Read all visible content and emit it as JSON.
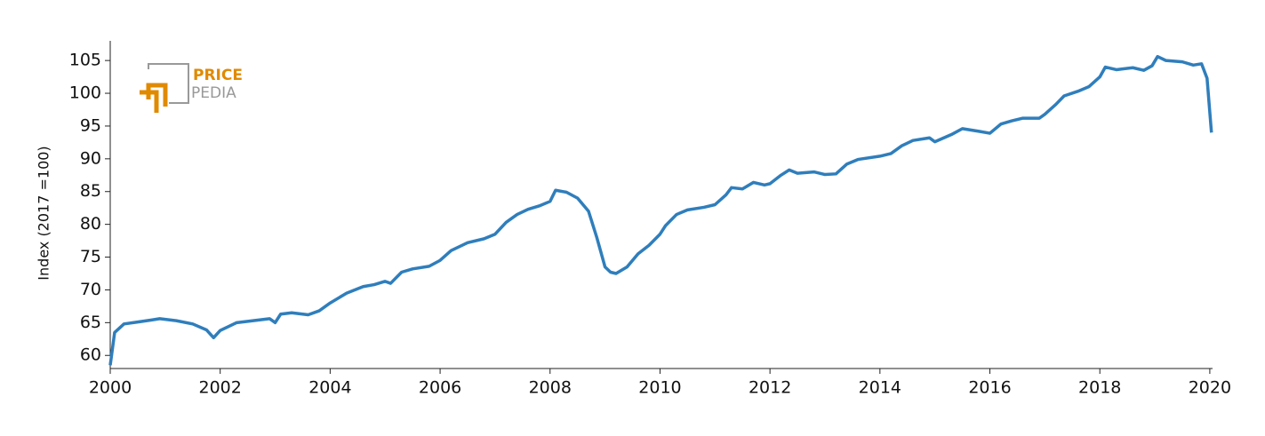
{
  "chart_data": {
    "type": "line",
    "y_label": "Index (2017 =100)",
    "watermark": {
      "line1": "PRICE",
      "line2": "PEDIA"
    },
    "xlim": [
      2000,
      2020.05
    ],
    "xticks": [
      2000,
      2002,
      2004,
      2006,
      2008,
      2010,
      2012,
      2014,
      2016,
      2018,
      2020
    ],
    "ylim": [
      58,
      108
    ],
    "yticks": [
      60,
      65,
      70,
      75,
      80,
      85,
      90,
      95,
      100,
      105
    ],
    "grid": false,
    "series": [
      {
        "name": "Index",
        "color": "#2f7ebc",
        "x": [
          2000.0,
          2000.08,
          2000.25,
          2000.5,
          2000.75,
          2000.9,
          2001.0,
          2001.2,
          2001.5,
          2001.75,
          2001.88,
          2002.0,
          2002.3,
          2002.6,
          2002.9,
          2003.0,
          2003.1,
          2003.3,
          2003.6,
          2003.8,
          2004.0,
          2004.3,
          2004.6,
          2004.8,
          2005.0,
          2005.1,
          2005.3,
          2005.5,
          2005.8,
          2006.0,
          2006.2,
          2006.5,
          2006.8,
          2007.0,
          2007.2,
          2007.4,
          2007.6,
          2007.8,
          2008.0,
          2008.1,
          2008.3,
          2008.5,
          2008.7,
          2008.85,
          2009.0,
          2009.1,
          2009.2,
          2009.4,
          2009.6,
          2009.8,
          2010.0,
          2010.1,
          2010.3,
          2010.5,
          2010.8,
          2011.0,
          2011.2,
          2011.3,
          2011.5,
          2011.7,
          2011.9,
          2012.0,
          2012.2,
          2012.35,
          2012.5,
          2012.8,
          2013.0,
          2013.2,
          2013.4,
          2013.6,
          2014.0,
          2014.2,
          2014.4,
          2014.6,
          2014.9,
          2015.0,
          2015.3,
          2015.5,
          2015.8,
          2016.0,
          2016.2,
          2016.4,
          2016.6,
          2016.9,
          2017.0,
          2017.2,
          2017.35,
          2017.6,
          2017.8,
          2018.0,
          2018.1,
          2018.3,
          2018.6,
          2018.8,
          2018.95,
          2019.05,
          2019.2,
          2019.5,
          2019.7,
          2019.85,
          2019.95,
          2020.03
        ],
        "values": [
          58.5,
          63.5,
          64.8,
          65.1,
          65.4,
          65.6,
          65.5,
          65.3,
          64.8,
          63.9,
          62.7,
          63.8,
          65.0,
          65.3,
          65.6,
          65.0,
          66.3,
          66.5,
          66.2,
          66.8,
          68.0,
          69.5,
          70.5,
          70.8,
          71.3,
          71.0,
          72.7,
          73.2,
          73.6,
          74.5,
          76.0,
          77.2,
          77.8,
          78.5,
          80.3,
          81.5,
          82.3,
          82.8,
          83.5,
          85.2,
          84.9,
          84.0,
          82.0,
          78.0,
          73.5,
          72.7,
          72.5,
          73.5,
          75.5,
          76.8,
          78.5,
          79.8,
          81.5,
          82.2,
          82.6,
          83.0,
          84.5,
          85.6,
          85.4,
          86.4,
          86.0,
          86.2,
          87.5,
          88.3,
          87.8,
          88.0,
          87.6,
          87.7,
          89.2,
          89.9,
          90.4,
          90.8,
          92.0,
          92.8,
          93.2,
          92.6,
          93.7,
          94.6,
          94.2,
          93.9,
          95.3,
          95.8,
          96.2,
          96.2,
          96.8,
          98.3,
          99.6,
          100.3,
          101.0,
          102.5,
          104.0,
          103.6,
          103.9,
          103.5,
          104.2,
          105.6,
          105.0,
          104.8,
          104.3,
          104.5,
          102.3,
          94.0
        ]
      }
    ]
  }
}
